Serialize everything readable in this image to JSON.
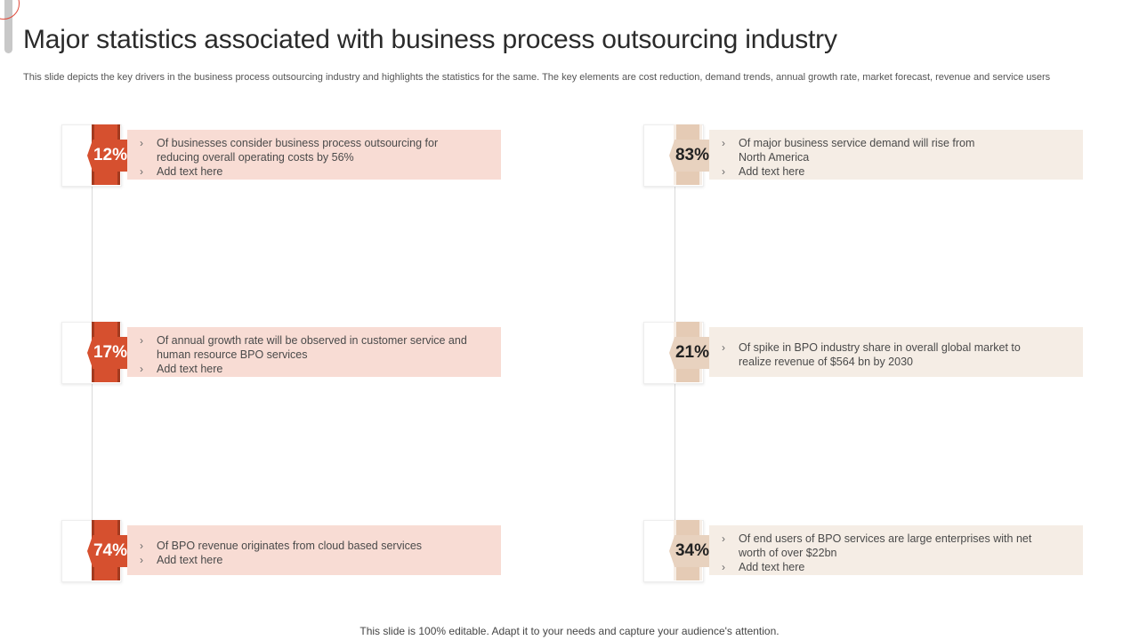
{
  "title": "Major statistics associated with business process outsourcing industry",
  "subtitle": "This slide depicts the key drivers in the business process outsourcing industry and highlights the statistics for the same. The key elements are cost reduction, demand trends, annual growth rate, market forecast, revenue and service users",
  "colors": {
    "accent": "#d6502f",
    "accent_panel": "#f8dcd4",
    "secondary": "#e8d2bf",
    "secondary_panel": "#f5ede5"
  },
  "left": [
    {
      "percent": "12%",
      "bullets": [
        [
          "Of businesses consider business process outsourcing for",
          "reducing overall  operating  costs by 56%"
        ],
        [
          "Add text here"
        ]
      ]
    },
    {
      "percent": "17%",
      "bullets": [
        [
          "Of annual growth rate will be observed  in customer service and",
          "human resource BPO services"
        ],
        [
          "Add text here"
        ]
      ]
    },
    {
      "percent": "74%",
      "bullets": [
        [
          "Of BPO revenue  originates from cloud based services"
        ],
        [
          "Add text here"
        ]
      ]
    }
  ],
  "right": [
    {
      "percent": "83%",
      "bullets": [
        [
          "Of major business service demand  will rise from",
          "North  America"
        ],
        [
          "Add text here"
        ]
      ]
    },
    {
      "percent": "21%",
      "bullets": [
        [
          "Of spike in BPO industry share in overall  global market to",
          "realize revenue  of $564 bn by 2030"
        ]
      ]
    },
    {
      "percent": "34%",
      "bullets": [
        [
          "Of end users of BPO services are large enterprises with net",
          "worth of over  $22bn"
        ],
        [
          "Add text here"
        ]
      ]
    }
  ],
  "footer": "This slide is 100% editable. Adapt it to your needs and capture your audience's attention."
}
